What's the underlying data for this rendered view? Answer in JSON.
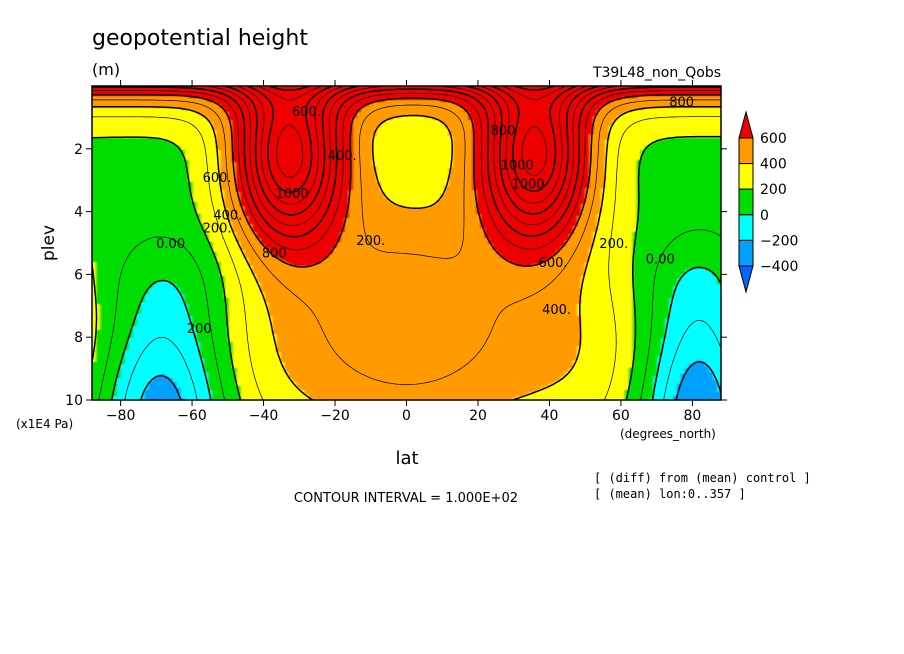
{
  "chart_data": {
    "type": "heatmap",
    "subtype": "filled-contour",
    "title": "geopotential height",
    "units": "(m)",
    "run_label": "T39L48_non_Qobs",
    "xlabel": "lat",
    "x_units": "(degrees_north)",
    "ylabel": "plev",
    "y_units": "(x1E4 Pa)",
    "xlim": [
      -88,
      88
    ],
    "ylim": [
      10,
      0
    ],
    "x_ticks": [
      "-80",
      "-60",
      "-40",
      "-20",
      "0",
      "20",
      "40",
      "60",
      "80"
    ],
    "y_ticks": [
      "2",
      "4",
      "6",
      "8",
      "10"
    ],
    "contour_interval": "CONTOUR INTERVAL = 1.000E+02",
    "notes": [
      "[ (diff) from (mean) control ]",
      "[ (mean) lon:0..357 ]"
    ],
    "colorbar": {
      "labels": [
        "600",
        "400",
        "200",
        "0",
        "-200",
        "-400"
      ],
      "colors": [
        "#ee0000",
        "#ff9a00",
        "#ffff00",
        "#00dd00",
        "#00ffff",
        "#00a0ff",
        "#0066ff"
      ]
    },
    "contour_labels": [
      {
        "text": "600.",
        "lat": -28,
        "plev": 0.8
      },
      {
        "text": "800",
        "lat": 77,
        "plev": 0.5
      },
      {
        "text": "600.",
        "lat": -53,
        "plev": 2.9
      },
      {
        "text": "400.",
        "lat": -18,
        "plev": 2.2
      },
      {
        "text": "1000",
        "lat": -32,
        "plev": 3.4
      },
      {
        "text": "800",
        "lat": 27,
        "plev": 1.4
      },
      {
        "text": "1000",
        "lat": 31,
        "plev": 2.5
      },
      {
        "text": "1000",
        "lat": 34,
        "plev": 3.1
      },
      {
        "text": "400.",
        "lat": -50,
        "plev": 4.1
      },
      {
        "text": "200.",
        "lat": -53,
        "plev": 4.5
      },
      {
        "text": "200.",
        "lat": -10,
        "plev": 4.9
      },
      {
        "text": "800",
        "lat": -37,
        "plev": 5.3
      },
      {
        "text": "0.00",
        "lat": -66,
        "plev": 5.0
      },
      {
        "text": "200.",
        "lat": 58,
        "plev": 5.0
      },
      {
        "text": "600.",
        "lat": 41,
        "plev": 5.6
      },
      {
        "text": "0.00",
        "lat": 71,
        "plev": 5.5
      },
      {
        "text": "400.",
        "lat": 42,
        "plev": 7.1
      },
      {
        "text": "200",
        "lat": -58,
        "plev": 7.7
      }
    ]
  }
}
